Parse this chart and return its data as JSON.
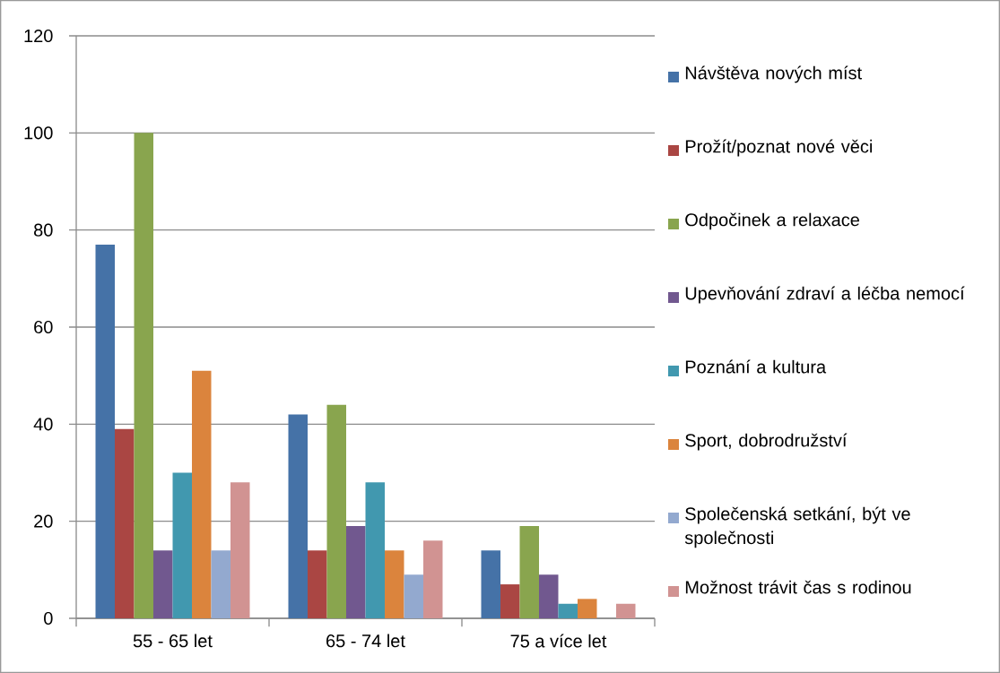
{
  "chart_data": {
    "type": "bar",
    "categories": [
      "55 - 65 let",
      "65 - 74 let",
      "75 a více let"
    ],
    "series": [
      {
        "name": "Návštěva nových míst",
        "color": "#4572a7",
        "values": [
          77,
          42,
          14
        ]
      },
      {
        "name": "Prožít/poznat nové věci",
        "color": "#aa4643",
        "values": [
          39,
          14,
          7
        ]
      },
      {
        "name": "Odpočinek a relaxace",
        "color": "#89a54e",
        "values": [
          100,
          44,
          19
        ]
      },
      {
        "name": "Upevňování zdraví a léčba nemocí",
        "color": "#71588f",
        "values": [
          14,
          19,
          9
        ]
      },
      {
        "name": "Poznání a kultura",
        "color": "#4198af",
        "values": [
          30,
          28,
          3
        ]
      },
      {
        "name": "Sport, dobrodružství",
        "color": "#db843d",
        "values": [
          51,
          14,
          4
        ]
      },
      {
        "name": "Společenská setkání, být ve společnosti",
        "color": "#93a9cf",
        "values": [
          14,
          9,
          0
        ]
      },
      {
        "name": "Možnost trávit čas s rodinou",
        "color": "#d19392",
        "values": [
          28,
          16,
          3
        ]
      }
    ],
    "ylim": [
      0,
      120
    ],
    "yticks": [
      0,
      20,
      40,
      60,
      80,
      100,
      120
    ],
    "grid": "y",
    "legend": "right"
  }
}
